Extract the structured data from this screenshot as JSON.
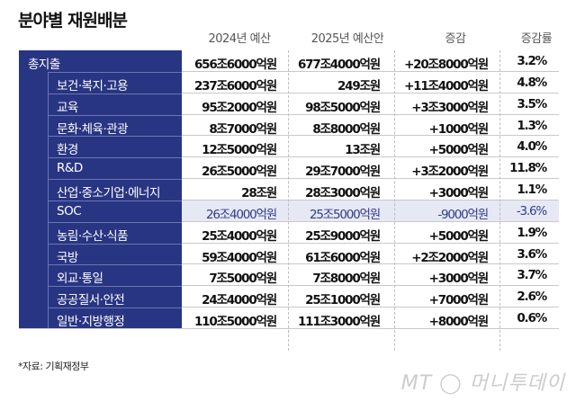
{
  "chart_data": {
    "type": "table",
    "title": "분야별 재원배분",
    "columns": [
      "2024년 예산",
      "2025년 예산안",
      "증감",
      "증감률"
    ],
    "rows": [
      {
        "label": "총지출",
        "values": [
          "656조6000억원",
          "677조4000억원",
          "+20조8000억원",
          "3.2%"
        ],
        "level": "total"
      },
      {
        "label": "보건·복지·고용",
        "values": [
          "237조6000억원",
          "249조원",
          "+11조4000억원",
          "4.8%"
        ]
      },
      {
        "label": "교육",
        "values": [
          "95조2000억원",
          "98조5000억원",
          "+3조3000억원",
          "3.5%"
        ]
      },
      {
        "label": "문화·체육·관광",
        "values": [
          "8조7000억원",
          "8조8000억원",
          "+1000억원",
          "1.3%"
        ]
      },
      {
        "label": "환경",
        "values": [
          "12조5000억원",
          "13조원",
          "+5000억원",
          "4.0%"
        ]
      },
      {
        "label": "R&D",
        "values": [
          "26조5000억원",
          "29조7000억원",
          "+3조2000억원",
          "11.8%"
        ]
      },
      {
        "label": "산업·중소기업·에너지",
        "values": [
          "28조원",
          "28조3000억원",
          "+3000억원",
          "1.1%"
        ]
      },
      {
        "label": "SOC",
        "values": [
          "26조4000억원",
          "25조5000억원",
          "-9000억원",
          "-3.6%"
        ],
        "highlight": true
      },
      {
        "label": "농림·수산·식품",
        "values": [
          "25조4000억원",
          "25조9000억원",
          "+5000억원",
          "1.9%"
        ]
      },
      {
        "label": "국방",
        "values": [
          "59조4000억원",
          "61조6000억원",
          "+2조2000억원",
          "3.6%"
        ]
      },
      {
        "label": "외교·통일",
        "values": [
          "7조5000억원",
          "7조8000억원",
          "+3000억원",
          "3.7%"
        ]
      },
      {
        "label": "공공질서·안전",
        "values": [
          "24조4000억원",
          "25조1000억원",
          "+7000억원",
          "2.6%"
        ]
      },
      {
        "label": "일반·지방행정",
        "values": [
          "110조5000억원",
          "111조3000억원",
          "+8000억원",
          "0.6%"
        ]
      }
    ]
  },
  "source": "*자료: 기획재정부",
  "logo": "MT 머니투데이",
  "colors": {
    "label_bg": "#283582",
    "highlight_bg": "#e6e8f3",
    "highlight_text": "#2f3c8c"
  }
}
